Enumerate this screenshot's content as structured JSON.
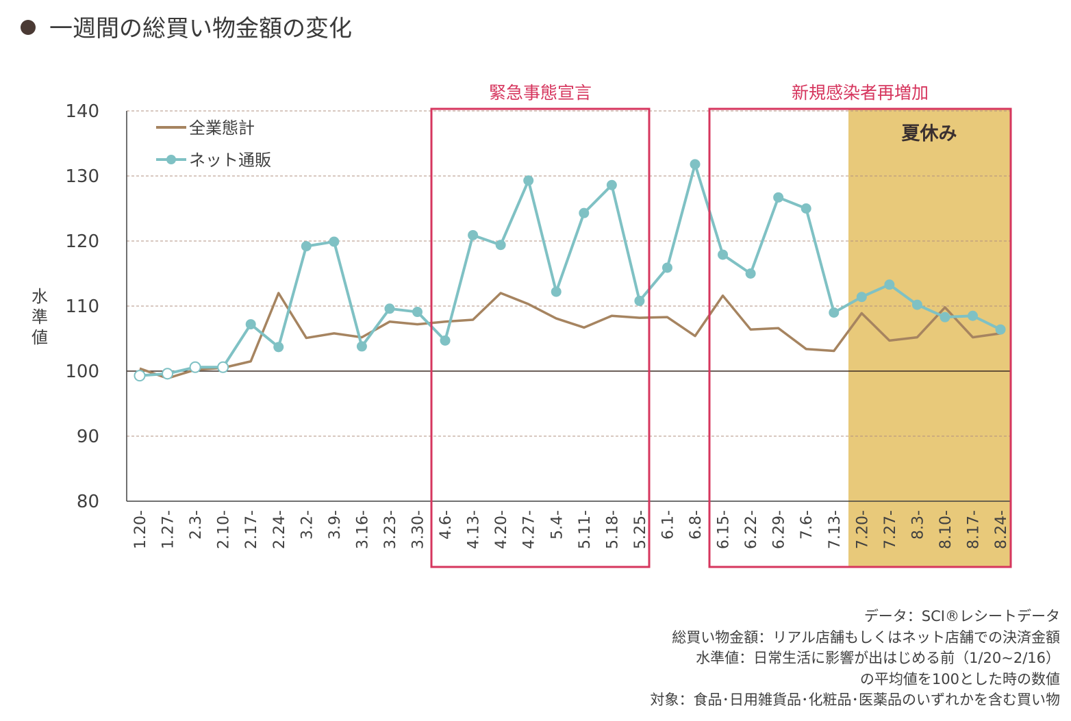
{
  "title": "一週間の総買い物金額の変化",
  "chart_data": {
    "type": "line",
    "ylabel": "水準値",
    "ylim": [
      80,
      140
    ],
    "yticks": [
      80,
      90,
      100,
      110,
      120,
      130,
      140
    ],
    "baseline": 100,
    "categories": [
      "1.20-",
      "1.27-",
      "2.3-",
      "2.10-",
      "2.17-",
      "2.24-",
      "3.2-",
      "3.9-",
      "3.16-",
      "3.23-",
      "3.30-",
      "4.6-",
      "4.13-",
      "4.20-",
      "4.27-",
      "5.4-",
      "5.11-",
      "5.18-",
      "5.25-",
      "6.1-",
      "6.8-",
      "6.15-",
      "6.22-",
      "6.29-",
      "7.6-",
      "7.13-",
      "7.20-",
      "7.27-",
      "8.3-",
      "8.10-",
      "8.17-",
      "8.24-"
    ],
    "series": [
      {
        "name": "全業態計",
        "color": "#a68460",
        "values": [
          100.4,
          98.9,
          100.2,
          100.5,
          101.5,
          112.0,
          105.1,
          105.8,
          105.2,
          107.6,
          107.2,
          107.6,
          107.9,
          112.0,
          110.3,
          108.1,
          106.7,
          108.5,
          108.2,
          108.3,
          105.4,
          111.6,
          106.4,
          106.6,
          103.4,
          103.1,
          108.9,
          104.7,
          105.2,
          109.8,
          105.2,
          105.8
        ]
      },
      {
        "name": "ネット通販",
        "color": "#7fc1c4",
        "values": [
          99.3,
          99.6,
          100.6,
          100.6,
          107.2,
          103.7,
          119.2,
          119.9,
          103.8,
          109.6,
          109.1,
          104.7,
          120.9,
          119.4,
          129.3,
          112.2,
          124.3,
          128.6,
          110.8,
          115.9,
          131.8,
          117.9,
          115.0,
          126.7,
          125.0,
          109.0,
          111.4,
          113.3,
          110.2,
          108.3,
          108.5,
          106.4
        ],
        "hollow_indices": [
          0,
          1,
          2,
          3
        ]
      }
    ],
    "legend_position": "top-left",
    "grid": true
  },
  "annotations": {
    "emergency": "緊急事態宣言",
    "resurgence": "新規感染者再増加",
    "summer": "夏休み"
  },
  "colors": {
    "highlight_box": "#d6365e",
    "summer_fill": "#e8c97a",
    "grid": "#b09080",
    "baseline": "#3a2a22"
  },
  "notes": [
    "データ：SCI®レシートデータ",
    "総買い物金額：リアル店舗もしくはネット店舗での決済金額",
    "水準値：日常生活に影響が出はじめる前（1/20~2/16）",
    "の平均値を100とした時の数値",
    "対象：食品･日用雑貨品･化粧品･医薬品のいずれかを含む買い物"
  ]
}
